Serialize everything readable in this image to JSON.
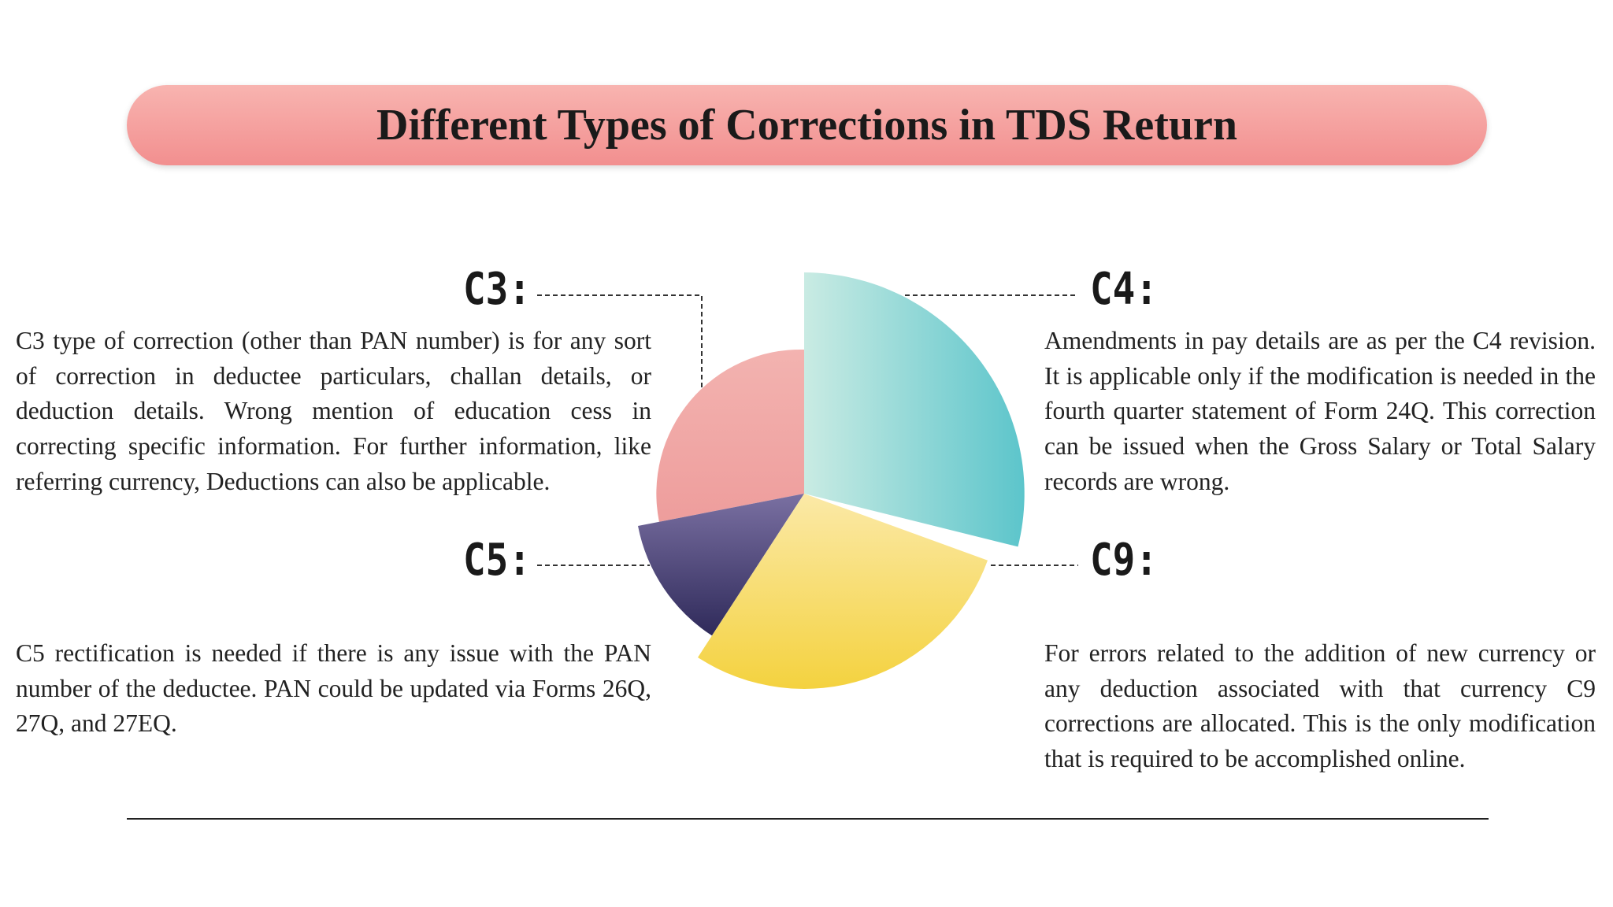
{
  "title": "Different Types of Corrections in TDS Return",
  "sections": [
    {
      "label": "C3:",
      "text": "C3 type of correction (other than PAN number) is for any sort of correction in deductee particulars, challan details, or deduction details. Wrong mention of education cess in correcting specific information. For further information, like referring currency, Deductions can also be applicable."
    },
    {
      "label": "C4:",
      "text": "Amendments in pay details are as per the C4 revision. It is applicable only if the modification is needed in the fourth quarter statement of Form 24Q. This correction can be issued when the Gross Salary or Total Salary records are wrong."
    },
    {
      "label": "C5:",
      "text": "C5 rectification is needed if there is any issue with the PAN number of the deductee. PAN could be updated via Forms 26Q, 27Q, and 27EQ."
    },
    {
      "label": "C9:",
      "text": "For errors related to the addition of new currency or any deduction associated with that currency C9 corrections are allocated. This is the only modification that is required to be accomplished online."
    }
  ]
}
